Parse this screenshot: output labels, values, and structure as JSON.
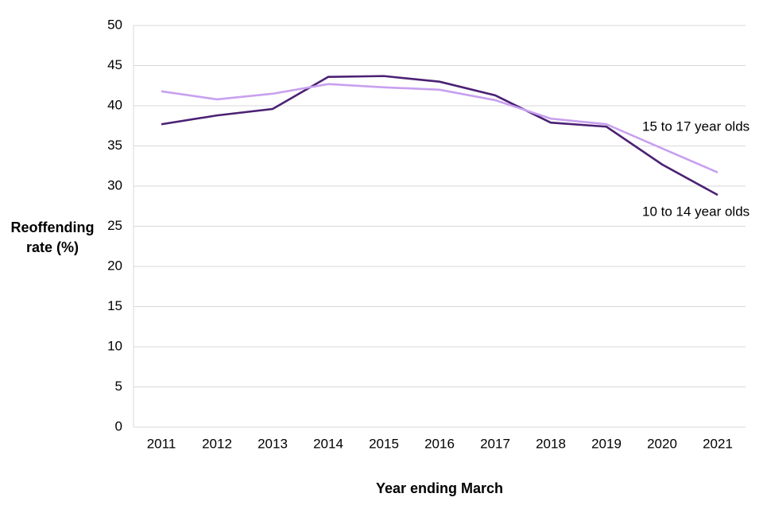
{
  "chart_data": {
    "type": "line",
    "ylabel": "Reoffending rate (%)",
    "xlabel": "Year ending March",
    "categories": [
      "2011",
      "2012",
      "2013",
      "2014",
      "2015",
      "2016",
      "2017",
      "2018",
      "2019",
      "2020",
      "2021"
    ],
    "series": [
      {
        "name": "10 to 14 year olds",
        "color": "#4b2173",
        "values": [
          37.7,
          38.8,
          39.6,
          43.6,
          43.7,
          43.0,
          41.3,
          37.9,
          37.4,
          32.7,
          28.9
        ]
      },
      {
        "name": "15 to 17 year olds",
        "color": "#c8a0ef",
        "values": [
          41.8,
          40.8,
          41.5,
          42.7,
          42.3,
          42.0,
          40.7,
          38.4,
          37.7,
          34.7,
          31.7
        ]
      }
    ],
    "ylim": [
      0,
      50
    ],
    "yticks": [
      0,
      5,
      10,
      15,
      20,
      25,
      30,
      35,
      40,
      45,
      50
    ],
    "grid": true
  }
}
